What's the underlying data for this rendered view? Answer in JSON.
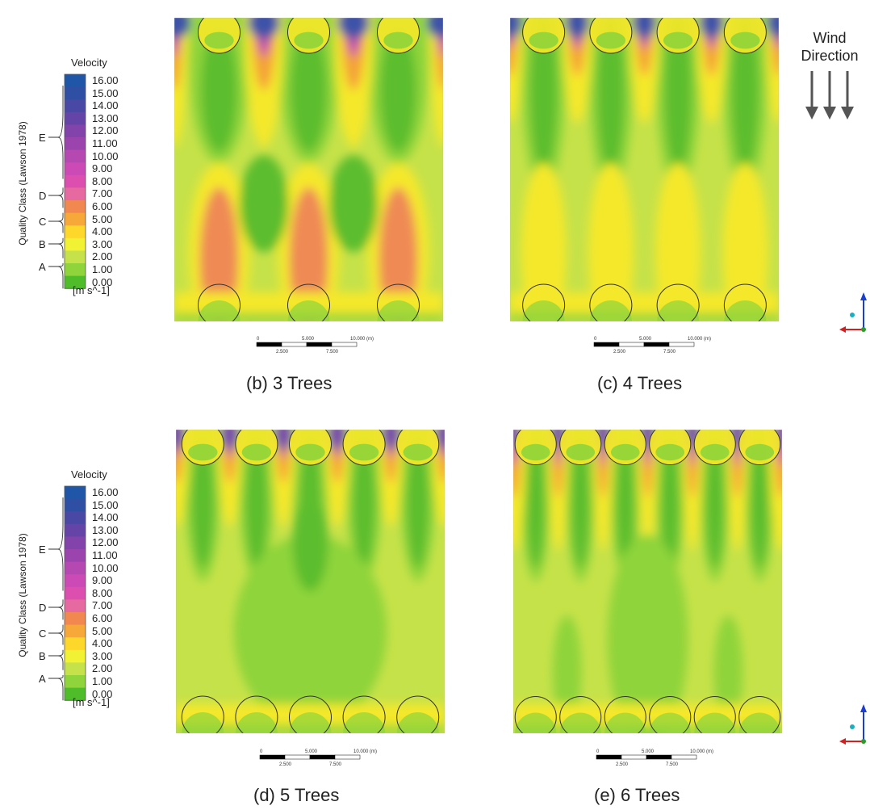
{
  "legend": {
    "title": "Velocity",
    "units": "[m s^-1]",
    "axis_label": "Quality Class (Lawson 1978)",
    "ticks": [
      "16.00",
      "15.00",
      "14.00",
      "13.00",
      "12.00",
      "11.00",
      "10.00",
      "9.00",
      "8.00",
      "7.00",
      "6.00",
      "5.00",
      "4.00",
      "3.00",
      "2.00",
      "1.00",
      "0.00"
    ],
    "classes": [
      "E",
      "D",
      "C",
      "B",
      "A"
    ],
    "colors": [
      "#1f56a8",
      "#2f4fa5",
      "#4a48a5",
      "#6544a8",
      "#8243ab",
      "#9c44ae",
      "#b648b2",
      "#cb4ab5",
      "#dc4fae",
      "#e66aa0",
      "#f08850",
      "#f6a838",
      "#fdd72a",
      "#f2f235",
      "#c6e24a",
      "#8fd43a",
      "#4fbd2a"
    ]
  },
  "panels": [
    {
      "caption": "(b)  3 Trees",
      "trees": 3
    },
    {
      "caption": "(c) 4 Trees",
      "trees": 4
    },
    {
      "caption": "(d) 5 Trees",
      "trees": 5
    },
    {
      "caption": "(e) 6 Trees",
      "trees": 6
    }
  ],
  "scale": {
    "top": [
      "0",
      "5.000",
      "10.000",
      "(m)"
    ],
    "bottom": [
      "2.500",
      "7.500"
    ]
  },
  "wind": {
    "line1": "Wind",
    "line2": "Direction"
  },
  "field_colors": {
    "dark_green": "#5bbd2f",
    "green": "#8fd43a",
    "light_green": "#c6e24a",
    "yellow": "#f5e829",
    "orange": "#f4a238",
    "salmon": "#ef8a55",
    "magenta": "#c04bb3",
    "purple": "#7247aa",
    "blue": "#3d53a8"
  }
}
